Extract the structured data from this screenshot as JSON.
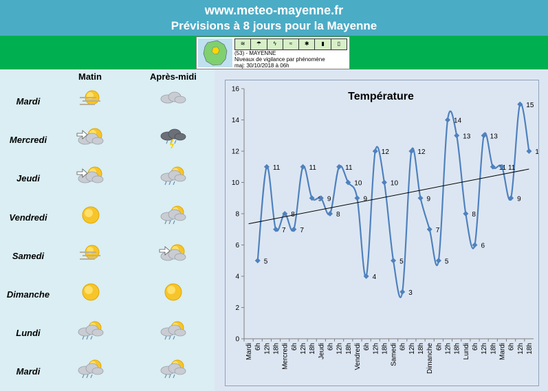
{
  "header": {
    "site": "www.meteo-mayenne.fr",
    "subtitle": "Prévisions à 8 jours pour la Mayenne"
  },
  "vigilance": {
    "line1": "(53) - MAYENNE",
    "line2": "Niveaux de vigilance par phénomène",
    "line3": "maj: 30/10/2018 à 06h"
  },
  "table": {
    "col_matin": "Matin",
    "col_apresmidi": "Après-midi",
    "days": [
      {
        "name": "Mardi",
        "matin": "sun-fog",
        "apm": "cloud"
      },
      {
        "name": "Mercredi",
        "matin": "wind-sun-cloud",
        "apm": "storm-rain"
      },
      {
        "name": "Jeudi",
        "matin": "wind-sun-cloud",
        "apm": "sun-cloud-rain"
      },
      {
        "name": "Vendredi",
        "matin": "sun",
        "apm": "sun-cloud-rain"
      },
      {
        "name": "Samedi",
        "matin": "sun-fog",
        "apm": "wind-sun-cloud"
      },
      {
        "name": "Dimanche",
        "matin": "sun",
        "apm": "sun"
      },
      {
        "name": "Lundi",
        "matin": "sun-cloud-rain",
        "apm": "sun-cloud-rain"
      },
      {
        "name": "Mardi",
        "matin": "sun-cloud-rain",
        "apm": "sun-cloud-rain"
      }
    ]
  },
  "chart_data": {
    "type": "line",
    "title": "Température",
    "xlabel": "",
    "ylabel": "",
    "ylim": [
      0,
      16
    ],
    "yticks": [
      0,
      2,
      4,
      6,
      8,
      10,
      12,
      14,
      16
    ],
    "grid": false,
    "smooth": true,
    "trendline": "linear",
    "categories": [
      "Mardi",
      "6h",
      "12h",
      "18h",
      "Mercredi",
      "6h",
      "12h",
      "18h",
      "Jeudi",
      "6h",
      "12h",
      "18h",
      "Vendredi",
      "6h",
      "12h",
      "18h",
      "Samedi",
      "6h",
      "12h",
      "18h",
      "Dimanche",
      "6h",
      "12h",
      "18h",
      "Lundi",
      "6h",
      "12h",
      "18h",
      "Mardi",
      "6h",
      "12h",
      "18h"
    ],
    "series": [
      {
        "color": "#4f81bd",
        "values": [
          null,
          5,
          11,
          7,
          8,
          7,
          11,
          9,
          9,
          8,
          11,
          10,
          9,
          4,
          12,
          10,
          5,
          3,
          12,
          9,
          7,
          5,
          14,
          13,
          8,
          6,
          13,
          11,
          11,
          9,
          15,
          12
        ]
      }
    ]
  }
}
